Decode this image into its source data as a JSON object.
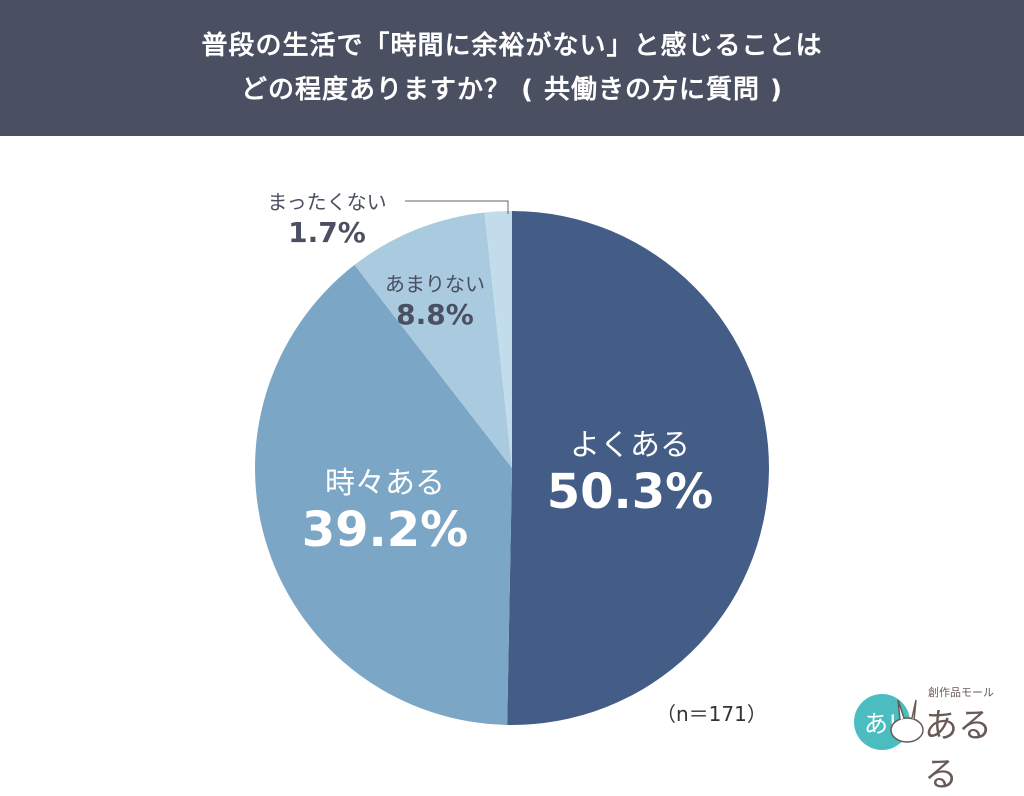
{
  "header": {
    "title_line1": "普段の生活で「時間に余裕がない」と感じることは",
    "title_line2": "どの程度ありますか？ ( 共働きの方に質問 )"
  },
  "labels": [
    {
      "name": "よくある",
      "pct": "50.3%"
    },
    {
      "name": "時々ある",
      "pct": "39.2%"
    },
    {
      "name": "あまりない",
      "pct": "8.8%"
    },
    {
      "name": "まったくない",
      "pct": "1.7%"
    }
  ],
  "sample_size": "（n＝171）",
  "logo": {
    "small": "創作品モール",
    "big": "あるる",
    "badge": "あ!"
  },
  "chart_data": {
    "type": "pie",
    "title": "普段の生活で「時間に余裕がない」と感じることはどの程度ありますか？ ( 共働きの方に質問 )",
    "categories": [
      "よくある",
      "時々ある",
      "あまりない",
      "まったくない"
    ],
    "values": [
      50.3,
      39.2,
      8.8,
      1.7
    ],
    "colors": [
      "#445d87",
      "#7ba6c6",
      "#a9cadf",
      "#c3dcec"
    ],
    "start_angle": "12 o'clock, clockwise",
    "annotations": [
      "(n=171)"
    ]
  }
}
